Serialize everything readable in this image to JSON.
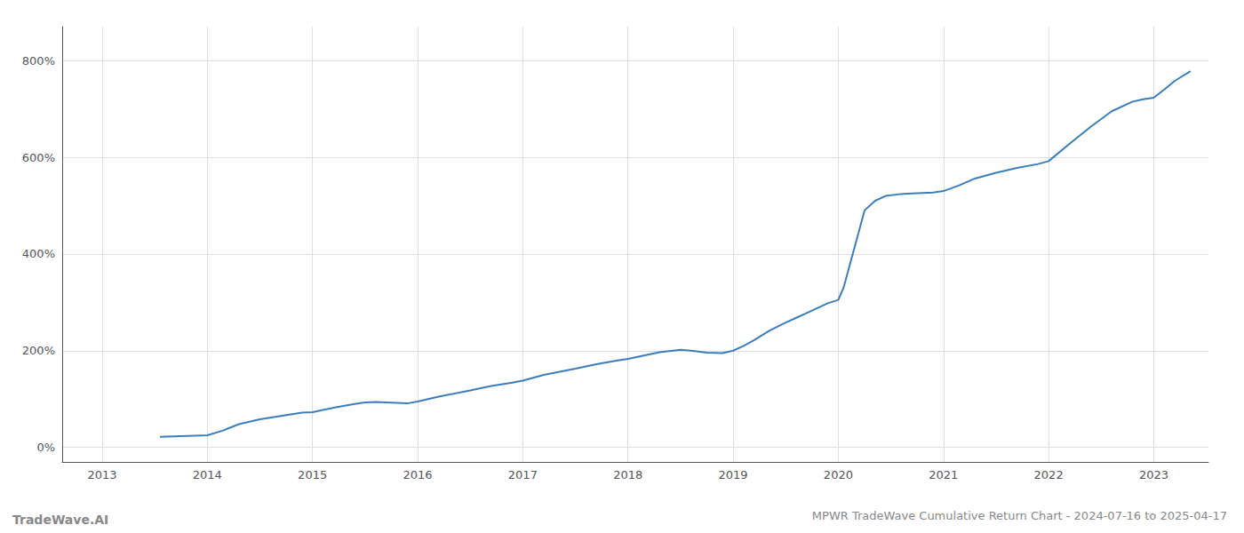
{
  "chart_data": {
    "type": "line",
    "title": "MPWR TradeWave Cumulative Return Chart - 2024-07-16 to 2025-04-17",
    "annotations": [
      "TradeWave.AI"
    ],
    "color": "#3a7ebf",
    "grid": true,
    "x": [
      2013.55,
      2014.0,
      2014.15,
      2014.3,
      2014.5,
      2014.7,
      2014.9,
      2015.0,
      2015.2,
      2015.4,
      2015.5,
      2015.6,
      2015.8,
      2015.9,
      2016.0,
      2016.2,
      2016.5,
      2016.7,
      2016.9,
      2017.0,
      2017.2,
      2017.5,
      2017.7,
      2017.9,
      2018.0,
      2018.15,
      2018.3,
      2018.5,
      2018.6,
      2018.75,
      2018.9,
      2019.0,
      2019.1,
      2019.2,
      2019.35,
      2019.5,
      2019.6,
      2019.7,
      2019.8,
      2019.9,
      2020.0,
      2020.05,
      2020.1,
      2020.15,
      2020.2,
      2020.25,
      2020.35,
      2020.45,
      2020.6,
      2020.8,
      2020.9,
      2021.0,
      2021.15,
      2021.3,
      2021.5,
      2021.7,
      2021.9,
      2022.0,
      2022.2,
      2022.4,
      2022.6,
      2022.8,
      2022.9,
      2023.0,
      2023.1,
      2023.2,
      2023.35
    ],
    "values": [
      22,
      25,
      35,
      48,
      58,
      65,
      72,
      73,
      82,
      90,
      93,
      94,
      92,
      91,
      95,
      105,
      118,
      127,
      134,
      138,
      150,
      163,
      172,
      180,
      183,
      190,
      197,
      202,
      200,
      196,
      195,
      200,
      210,
      222,
      242,
      258,
      268,
      278,
      288,
      298,
      305,
      330,
      370,
      410,
      450,
      490,
      510,
      520,
      524,
      526,
      527,
      530,
      542,
      556,
      568,
      578,
      586,
      592,
      628,
      663,
      695,
      715,
      720,
      723,
      740,
      758,
      778
    ],
    "xlim": [
      2012.62,
      2023.52
    ],
    "xticks": [
      2013,
      2014,
      2015,
      2016,
      2017,
      2018,
      2019,
      2020,
      2021,
      2022,
      2023
    ],
    "ylim": [
      -30,
      870
    ],
    "yticks": [
      {
        "value": 0,
        "label": "0%"
      },
      {
        "value": 200,
        "label": "200%"
      },
      {
        "value": 400,
        "label": "400%"
      },
      {
        "value": 600,
        "label": "600%"
      },
      {
        "value": 800,
        "label": "800%"
      }
    ]
  }
}
